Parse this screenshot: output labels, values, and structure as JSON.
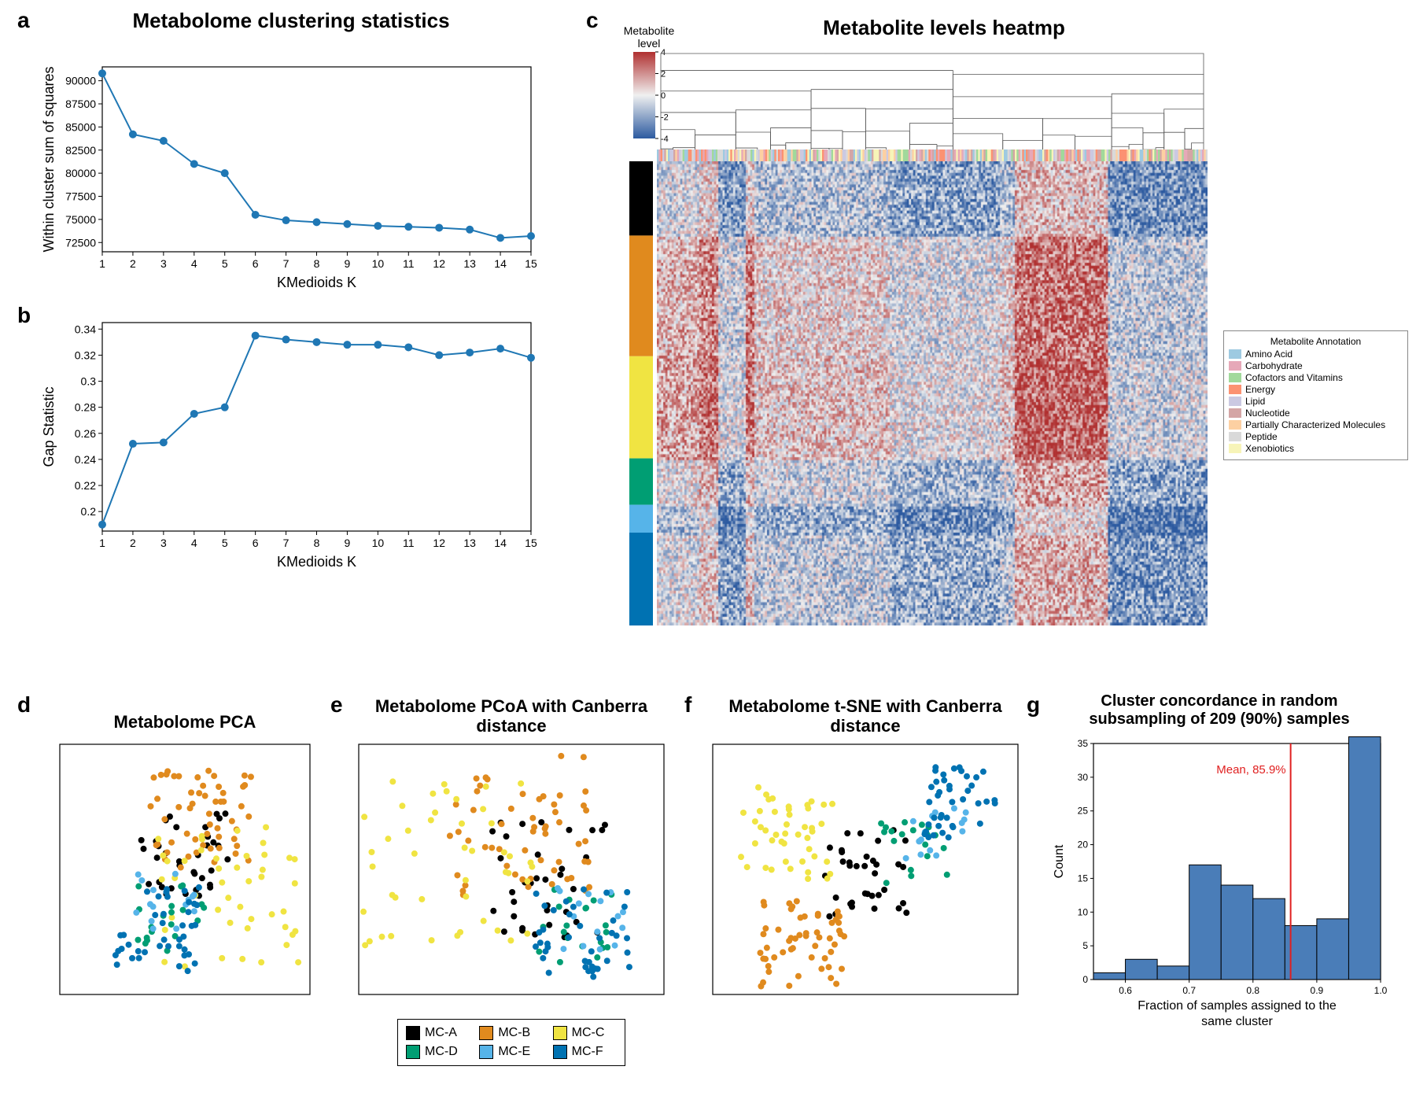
{
  "panels": {
    "a": {
      "label": "a",
      "title": "Metabolome clustering statistics"
    },
    "b": {
      "label": "b"
    },
    "c": {
      "label": "c",
      "title": "Metabolite levels heatmp"
    },
    "d": {
      "label": "d",
      "title": "Metabolome PCA"
    },
    "e": {
      "label": "e",
      "title": "Metabolome PCoA with Canberra distance"
    },
    "f": {
      "label": "f",
      "title": "Metabolome t-SNE with Canberra distance"
    },
    "g": {
      "label": "g",
      "title": "Cluster concordance in random subsampling of 209 (90%) samples"
    }
  },
  "chart_a": {
    "type": "line",
    "x": [
      1,
      2,
      3,
      4,
      5,
      6,
      7,
      8,
      9,
      10,
      11,
      12,
      13,
      14,
      15
    ],
    "y": [
      90800,
      84200,
      83500,
      81000,
      80000,
      75500,
      74900,
      74700,
      74500,
      74300,
      74200,
      74100,
      73900,
      73000,
      73200
    ],
    "xlabel": "KMedioids K",
    "ylabel": "Within cluster sum of squares",
    "xlim": [
      1,
      15
    ],
    "ylim": [
      72500,
      90000
    ],
    "yticks": [
      72500,
      75000,
      77500,
      80000,
      82500,
      85000,
      87500,
      90000
    ],
    "line_color": "#1f77b4",
    "marker_color": "#1f77b4",
    "marker_size": 5,
    "line_width": 2,
    "background_color": "#ffffff",
    "axis_color": "#000000",
    "label_fontsize": 18,
    "tick_fontsize": 14
  },
  "chart_b": {
    "type": "line",
    "x": [
      1,
      2,
      3,
      4,
      5,
      6,
      7,
      8,
      9,
      10,
      11,
      12,
      13,
      14,
      15
    ],
    "y": [
      0.19,
      0.252,
      0.253,
      0.275,
      0.28,
      0.335,
      0.332,
      0.33,
      0.328,
      0.328,
      0.326,
      0.32,
      0.322,
      0.325,
      0.318
    ],
    "xlabel": "KMedioids K",
    "ylabel": "Gap Statistic",
    "xlim": [
      1,
      15
    ],
    "ylim": [
      0.2,
      0.34
    ],
    "yticks": [
      0.2,
      0.22,
      0.24,
      0.26,
      0.28,
      0.3,
      0.32,
      0.34
    ],
    "line_color": "#1f77b4",
    "marker_color": "#1f77b4",
    "marker_size": 5,
    "line_width": 2,
    "background_color": "#ffffff",
    "axis_color": "#000000",
    "label_fontsize": 18,
    "tick_fontsize": 14
  },
  "heatmap": {
    "colorbar_title": "Metabolite level",
    "colorbar_ticks": [
      -4,
      -2,
      0,
      2,
      4
    ],
    "color_low": "#2c5aa0",
    "color_mid": "#f0f0f0",
    "color_high": "#b03030",
    "row_groups": [
      {
        "color": "#000000",
        "frac": 0.16
      },
      {
        "color": "#e08a1e",
        "frac": 0.26
      },
      {
        "color": "#f0e442",
        "frac": 0.22
      },
      {
        "color": "#009e73",
        "frac": 0.1
      },
      {
        "color": "#56b4e9",
        "frac": 0.06
      },
      {
        "color": "#0072b2",
        "frac": 0.2
      }
    ],
    "annotation_legend_title": "Metabolite Annotation",
    "annotation_legend": [
      {
        "label": "Amino Acid",
        "color": "#9ecae1"
      },
      {
        "label": "Carbohydrate",
        "color": "#e6a8b8"
      },
      {
        "label": "Cofactors and Vitamins",
        "color": "#a1d99b"
      },
      {
        "label": "Energy",
        "color": "#fc9272"
      },
      {
        "label": "Lipid",
        "color": "#cbc9e2"
      },
      {
        "label": "Nucleotide",
        "color": "#d4a5a5"
      },
      {
        "label": "Partially Characterized Molecules",
        "color": "#fdd0a2"
      },
      {
        "label": "Peptide",
        "color": "#d9d9d9"
      },
      {
        "label": "Xenobiotics",
        "color": "#f7f4b8"
      }
    ],
    "dendro_color": "#555555"
  },
  "scatter": {
    "cluster_colors": {
      "MC-A": "#000000",
      "MC-B": "#e08a1e",
      "MC-C": "#f0e442",
      "MC-D": "#009e73",
      "MC-E": "#56b4e9",
      "MC-F": "#0072b2"
    },
    "legend_items": [
      "MC-A",
      "MC-B",
      "MC-C",
      "MC-D",
      "MC-E",
      "MC-F"
    ],
    "marker_size": 4,
    "border_color": "#000000",
    "background_color": "#ffffff"
  },
  "chart_g": {
    "type": "histogram",
    "bin_edges": [
      0.55,
      0.6,
      0.65,
      0.7,
      0.75,
      0.8,
      0.85,
      0.9,
      0.95,
      1.0
    ],
    "counts": [
      1,
      3,
      2,
      17,
      14,
      12,
      8,
      9,
      36
    ],
    "xlabel": "Fraction of samples assigned to the same cluster",
    "ylabel": "Count",
    "yticks": [
      0,
      5,
      10,
      15,
      20,
      25,
      30,
      35
    ],
    "bar_color": "#4a7db8",
    "bar_edge": "#000000",
    "mean_line_x": 0.859,
    "mean_line_color": "#e02020",
    "mean_label": "Mean, 85.9%",
    "mean_label_color": "#e02020",
    "label_fontsize": 16,
    "tick_fontsize": 12
  }
}
